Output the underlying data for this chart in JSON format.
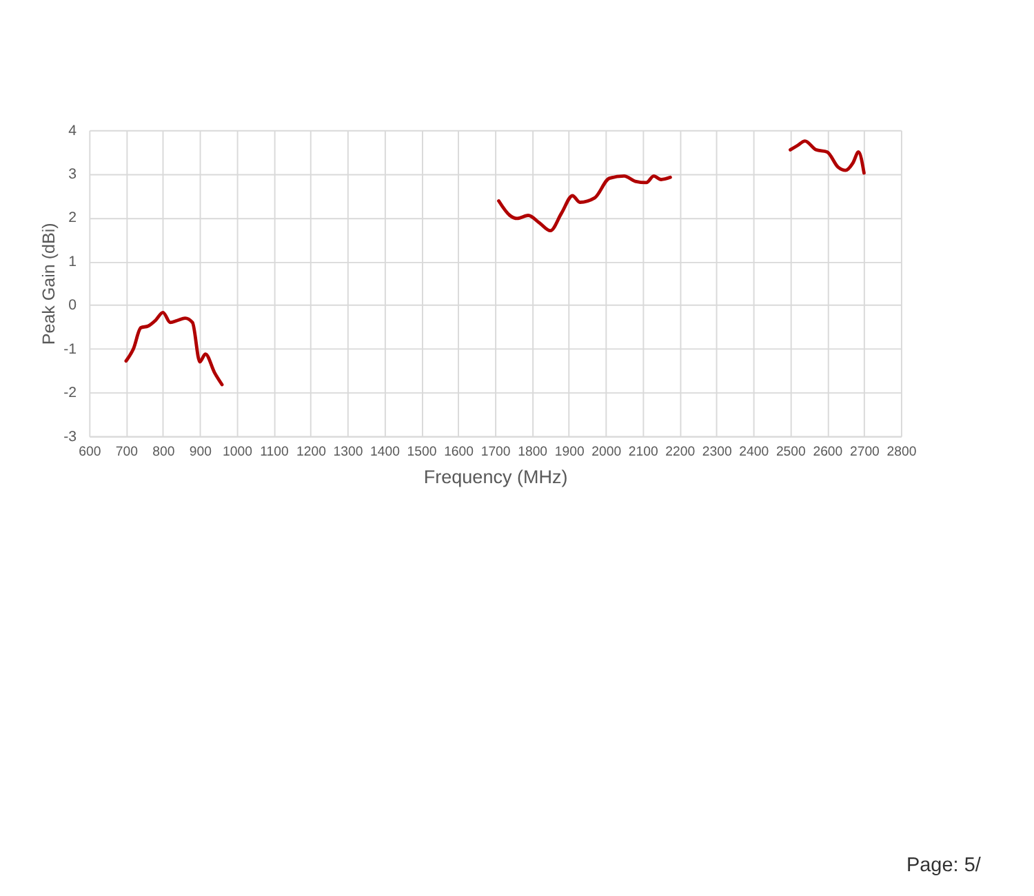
{
  "chart_data": {
    "type": "line",
    "xlabel": "Frequency (MHz)",
    "ylabel": "Peak Gain (dBi)",
    "x": [
      700,
      720,
      740,
      760,
      780,
      800,
      820,
      840,
      860,
      880,
      900,
      915,
      940,
      960,
      1000,
      1710,
      1740,
      1760,
      1790,
      1820,
      1850,
      1880,
      1910,
      1930,
      1970,
      2010,
      2050,
      2080,
      2110,
      2130,
      2150,
      2175,
      2300,
      2500,
      2520,
      2540,
      2570,
      2600,
      2630,
      2650,
      2670,
      2685,
      2700
    ],
    "series": [
      {
        "color": "#b00000",
        "values": [
          -1.28,
          -1.0,
          -0.52,
          -0.48,
          -0.35,
          -0.17,
          -0.4,
          -0.35,
          -0.3,
          -0.4,
          -1.3,
          -1.12,
          -1.55,
          -1.82,
          null,
          2.38,
          2.05,
          1.98,
          2.05,
          1.88,
          1.7,
          2.1,
          2.5,
          2.35,
          2.45,
          2.9,
          2.95,
          2.83,
          2.8,
          2.95,
          2.87,
          2.92,
          null,
          3.55,
          3.65,
          3.75,
          3.55,
          3.5,
          3.15,
          3.08,
          3.25,
          3.5,
          3.02
        ]
      }
    ],
    "xlim": [
      600,
      2800
    ],
    "xticks": [
      600,
      700,
      800,
      900,
      1000,
      1100,
      1200,
      1300,
      1400,
      1500,
      1600,
      1700,
      1800,
      1900,
      2000,
      2100,
      2200,
      2300,
      2400,
      2500,
      2600,
      2700,
      2800
    ],
    "ylim": [
      -3,
      4
    ],
    "yticks": [
      -3,
      -2,
      -1,
      0,
      1,
      2,
      3,
      4
    ],
    "grid": true,
    "legend": false,
    "line_style": "solid",
    "annotations": [
      "Page: 5/"
    ]
  }
}
